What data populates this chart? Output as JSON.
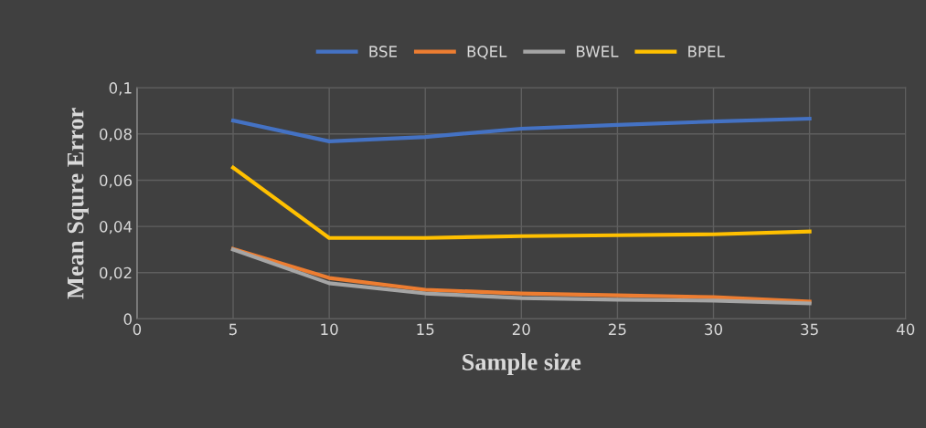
{
  "chart_data": {
    "type": "line",
    "xlabel": "Sample size",
    "ylabel": "Mean Squre Error",
    "x": [
      5,
      10,
      15,
      20,
      25,
      30,
      35
    ],
    "series": [
      {
        "name": "BSE",
        "color": "#4472c4",
        "values": [
          0.0858,
          0.0768,
          0.0787,
          0.0823,
          0.0839,
          0.0854,
          0.0866
        ]
      },
      {
        "name": "BQEL",
        "color": "#ed7d31",
        "values": [
          0.0303,
          0.0177,
          0.0126,
          0.011,
          0.0102,
          0.0094,
          0.0075
        ]
      },
      {
        "name": "BWEL",
        "color": "#a5a5a5",
        "values": [
          0.03,
          0.0154,
          0.011,
          0.009,
          0.0083,
          0.0079,
          0.0067
        ]
      },
      {
        "name": "BPEL",
        "color": "#ffc000",
        "values": [
          0.0654,
          0.035,
          0.035,
          0.0358,
          0.0362,
          0.0366,
          0.0378
        ]
      }
    ],
    "xlim": [
      0,
      40
    ],
    "xticks": [
      0,
      5,
      10,
      15,
      20,
      25,
      30,
      35,
      40
    ],
    "ylim": [
      0,
      0.1
    ],
    "yticks": [
      {
        "value": 0,
        "label": "0"
      },
      {
        "value": 0.02,
        "label": "0,02"
      },
      {
        "value": 0.04,
        "label": "0,04"
      },
      {
        "value": 0.06,
        "label": "0,06"
      },
      {
        "value": 0.08,
        "label": "0,08"
      },
      {
        "value": 0.1,
        "label": "0,1"
      }
    ],
    "grid": true,
    "legend": "top",
    "marker": "none",
    "line_style": "solid"
  }
}
